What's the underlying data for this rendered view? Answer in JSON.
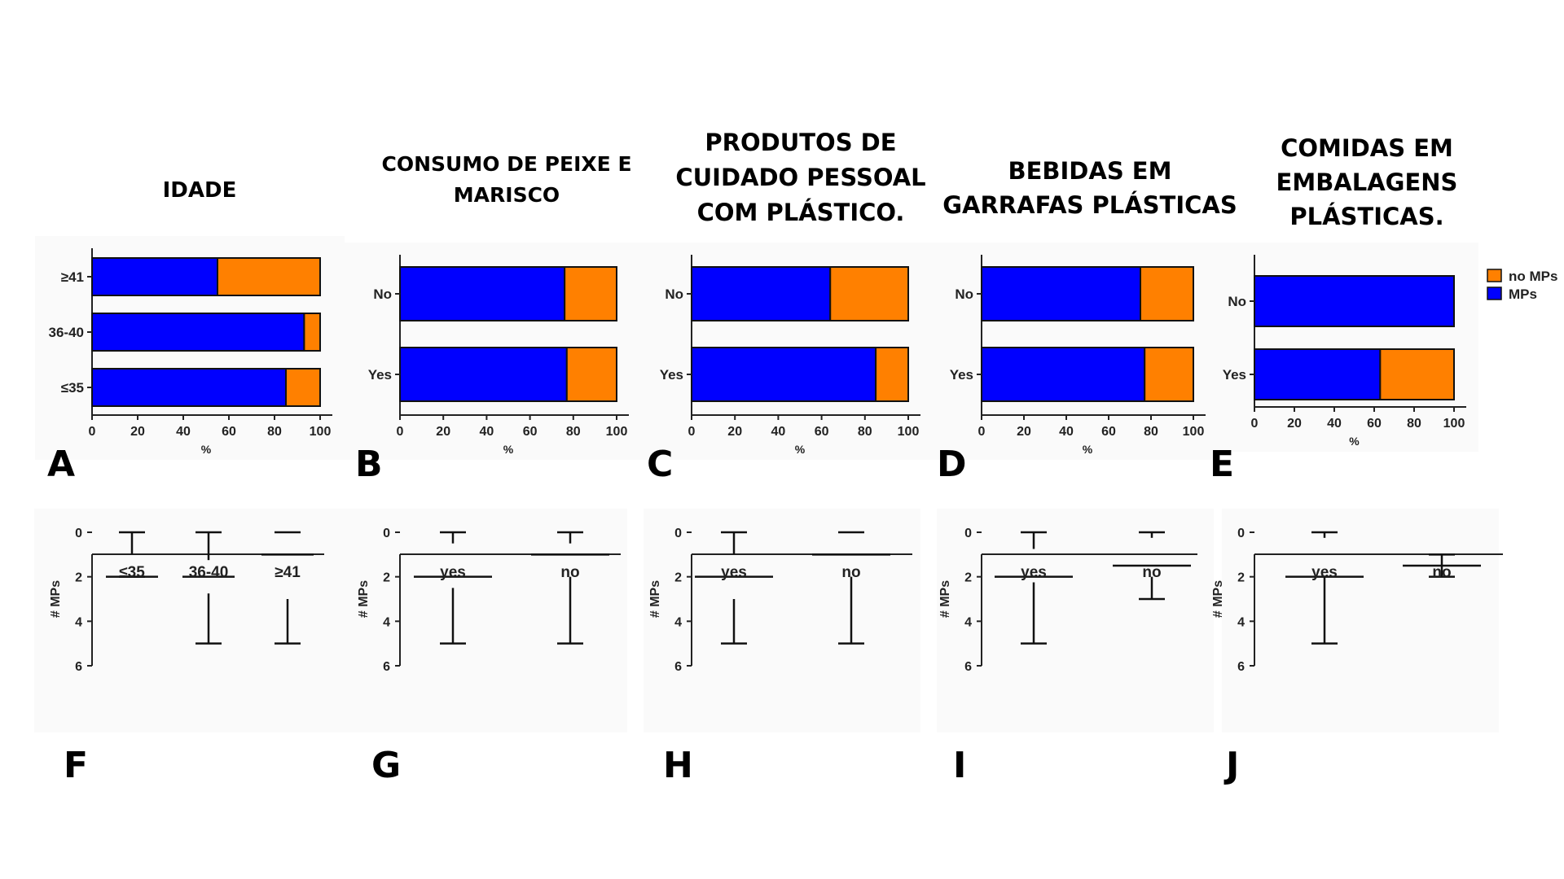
{
  "colors": {
    "mps": "#0000ff",
    "no_mps": "#ff8000",
    "box_light": "#9df59d",
    "box_mid": "#00c000",
    "box_dark": "#007a00",
    "panel_bg": "#fafafa"
  },
  "columns": [
    {
      "title_lines": [
        "IDADE"
      ]
    },
    {
      "title_lines": [
        "CONSUMO DE PEIXE E",
        "MARISCO"
      ]
    },
    {
      "title_lines": [
        "PRODUTOS DE",
        "CUIDADO PESSOAL",
        "COM PLÁSTICO."
      ]
    },
    {
      "title_lines": [
        "BEBIDAS EM",
        "GARRAFAS PLÁSTICAS"
      ]
    },
    {
      "title_lines": [
        "COMIDAS EM",
        "EMBALAGENS",
        "PLÁSTICAS."
      ]
    }
  ],
  "legend": {
    "no_mps": "no MPs",
    "mps": "MPs"
  },
  "chart_data": [
    {
      "panel": "A",
      "type": "bar",
      "stacked": true,
      "orientation": "horizontal",
      "categories": [
        "≥41",
        "36-40",
        "≤35"
      ],
      "xlabel": "%",
      "xlim": [
        0,
        100
      ],
      "xticks": [
        0,
        20,
        40,
        60,
        80,
        100
      ],
      "series": [
        {
          "name": "MPs",
          "values": [
            55,
            93,
            85
          ]
        },
        {
          "name": "no MPs",
          "values": [
            45,
            7,
            15
          ]
        }
      ]
    },
    {
      "panel": "B",
      "type": "bar",
      "stacked": true,
      "orientation": "horizontal",
      "categories": [
        "No",
        "Yes"
      ],
      "xlabel": "%",
      "xlim": [
        0,
        100
      ],
      "xticks": [
        0,
        20,
        40,
        60,
        80,
        100
      ],
      "series": [
        {
          "name": "MPs",
          "values": [
            76,
            77
          ]
        },
        {
          "name": "no MPs",
          "values": [
            24,
            23
          ]
        }
      ]
    },
    {
      "panel": "C",
      "type": "bar",
      "stacked": true,
      "orientation": "horizontal",
      "categories": [
        "No",
        "Yes"
      ],
      "xlabel": "%",
      "xlim": [
        0,
        100
      ],
      "xticks": [
        0,
        20,
        40,
        60,
        80,
        100
      ],
      "series": [
        {
          "name": "MPs",
          "values": [
            64,
            85
          ]
        },
        {
          "name": "no MPs",
          "values": [
            36,
            15
          ]
        }
      ]
    },
    {
      "panel": "D",
      "type": "bar",
      "stacked": true,
      "orientation": "horizontal",
      "categories": [
        "No",
        "Yes"
      ],
      "xlabel": "%",
      "xlim": [
        0,
        100
      ],
      "xticks": [
        0,
        20,
        40,
        60,
        80,
        100
      ],
      "series": [
        {
          "name": "MPs",
          "values": [
            75,
            77
          ]
        },
        {
          "name": "no MPs",
          "values": [
            25,
            23
          ]
        }
      ]
    },
    {
      "panel": "E",
      "type": "bar",
      "stacked": true,
      "orientation": "horizontal",
      "categories": [
        "No",
        "Yes"
      ],
      "xlabel": "%",
      "xlim": [
        0,
        100
      ],
      "xticks": [
        0,
        20,
        40,
        60,
        80,
        100
      ],
      "series": [
        {
          "name": "MPs",
          "values": [
            100,
            63
          ]
        },
        {
          "name": "no MPs",
          "values": [
            0,
            37
          ]
        }
      ]
    },
    {
      "panel": "F",
      "type": "box",
      "ylabel": "# MPs",
      "ylim": [
        0,
        6
      ],
      "yticks": [
        0,
        2,
        4,
        6
      ],
      "categories": [
        "≤35",
        "36-40",
        "≥41"
      ],
      "boxes": [
        {
          "min": 0,
          "q1": 1,
          "median": 2,
          "q3": 2,
          "max": 2,
          "fill": "light"
        },
        {
          "min": 0,
          "q1": 1.25,
          "median": 2,
          "q3": 2.75,
          "max": 5,
          "fill": "mid"
        },
        {
          "min": 0,
          "q1": 0,
          "median": 1,
          "q3": 3,
          "max": 5,
          "fill": "dark"
        }
      ]
    },
    {
      "panel": "G",
      "type": "box",
      "ylabel": "# MPs",
      "ylim": [
        0,
        6
      ],
      "yticks": [
        0,
        2,
        4,
        6
      ],
      "categories": [
        "yes",
        "no"
      ],
      "boxes": [
        {
          "min": 0,
          "q1": 0.5,
          "median": 2,
          "q3": 2.5,
          "max": 5,
          "fill": "light"
        },
        {
          "min": 0,
          "q1": 0.5,
          "median": 1,
          "q3": 2,
          "max": 5,
          "fill": "mid"
        }
      ]
    },
    {
      "panel": "H",
      "type": "box",
      "ylabel": "# MPs",
      "ylim": [
        0,
        6
      ],
      "yticks": [
        0,
        2,
        4,
        6
      ],
      "categories": [
        "yes",
        "no"
      ],
      "boxes": [
        {
          "min": 0,
          "q1": 1,
          "median": 2,
          "q3": 3,
          "max": 5,
          "fill": "light"
        },
        {
          "min": 0,
          "q1": 0,
          "median": 1,
          "q3": 2,
          "max": 5,
          "fill": "mid"
        }
      ]
    },
    {
      "panel": "I",
      "type": "box",
      "ylabel": "# MPs",
      "ylim": [
        0,
        6
      ],
      "yticks": [
        0,
        2,
        4,
        6
      ],
      "categories": [
        "yes",
        "no"
      ],
      "boxes": [
        {
          "min": 0,
          "q1": 0.75,
          "median": 2,
          "q3": 2.25,
          "max": 5,
          "fill": "light"
        },
        {
          "min": 0,
          "q1": 0.25,
          "median": 1.5,
          "q3": 2,
          "max": 3,
          "fill": "mid"
        }
      ]
    },
    {
      "panel": "J",
      "type": "box",
      "ylabel": "# MPs",
      "ylim": [
        0,
        6
      ],
      "yticks": [
        0,
        2,
        4,
        6
      ],
      "categories": [
        "yes",
        "no"
      ],
      "boxes": [
        {
          "min": 0,
          "q1": 0.25,
          "median": 2,
          "q3": 2,
          "max": 5,
          "fill": "light"
        },
        {
          "min": 1,
          "q1": 1.5,
          "median": 1.5,
          "q3": 1.5,
          "max": 2,
          "fill": "none"
        }
      ]
    }
  ]
}
